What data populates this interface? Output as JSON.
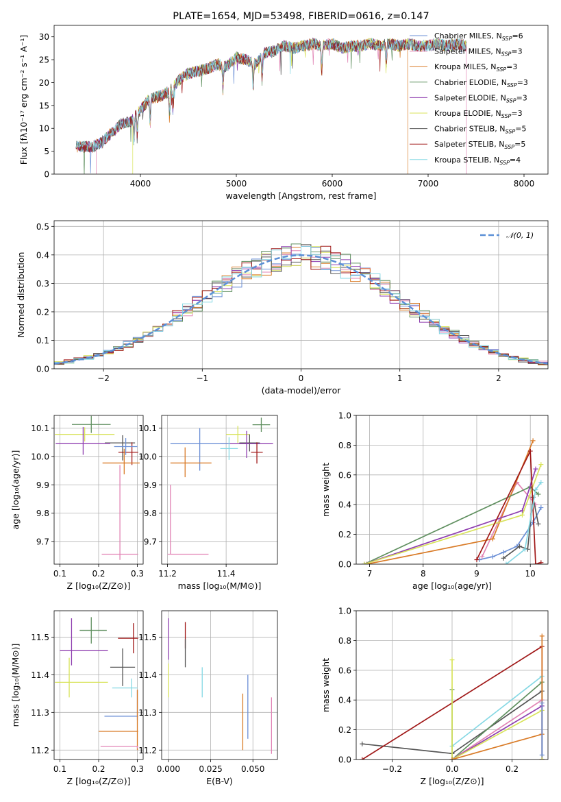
{
  "figure": {
    "title": "PLATE=1654, MJD=53498, FIBERID=0616, z=0.147"
  },
  "colors": {
    "Chabrier MILES": "#6b8fd6",
    "Salpeter MILES": "#e183b4",
    "Kroupa MILES": "#d97b27",
    "Chabrier ELODIE": "#5f8f5f",
    "Salpeter ELODIE": "#8f3fb0",
    "Kroupa ELODIE": "#d8e35a",
    "Chabrier STELIB": "#555555",
    "Salpeter STELIB": "#a01818",
    "Kroupa STELIB": "#86d8e4"
  },
  "chart_data": [
    {
      "id": "spectrum",
      "type": "line",
      "title": "PLATE=1654, MJD=53498, FIBERID=0616, z=0.147",
      "xlabel": "wavelength [Angstrom, rest frame]",
      "ylabel": "Flux [fλ10⁻¹⁷ erg cm⁻² s⁻¹ A⁻¹]",
      "xlim": [
        3100,
        8250
      ],
      "ylim": [
        0,
        32.5
      ],
      "xticks": [
        4000,
        5000,
        6000,
        7000,
        8000
      ],
      "yticks": [
        0,
        5,
        10,
        15,
        20,
        25,
        30
      ],
      "grid": false,
      "legend_position": "upper-right",
      "legend": [
        {
          "label": "Chabrier MILES, N",
          "sub": "SSP",
          "suffix": "=6",
          "model": "Chabrier MILES"
        },
        {
          "label": "Salpeter MILES, N",
          "sub": "SSP",
          "suffix": "=3",
          "model": "Salpeter MILES"
        },
        {
          "label": "Kroupa MILES, N",
          "sub": "SSP",
          "suffix": "=3",
          "model": "Kroupa MILES"
        },
        {
          "label": "Chabrier ELODIE, N",
          "sub": "SSP",
          "suffix": "=3",
          "model": "Chabrier ELODIE"
        },
        {
          "label": "Salpeter ELODIE, N",
          "sub": "SSP",
          "suffix": "=3",
          "model": "Salpeter ELODIE"
        },
        {
          "label": "Kroupa ELODIE, N",
          "sub": "SSP",
          "suffix": "=3",
          "model": "Kroupa ELODIE"
        },
        {
          "label": "Chabrier STELIB, N",
          "sub": "SSP",
          "suffix": "=5",
          "model": "Chabrier STELIB"
        },
        {
          "label": "Salpeter STELIB, N",
          "sub": "SSP",
          "suffix": "=5",
          "model": "Salpeter STELIB"
        },
        {
          "label": "Kroupa STELIB, N",
          "sub": "SSP",
          "suffix": "=4",
          "model": "Kroupa STELIB"
        }
      ],
      "continuum": {
        "x": [
          3330,
          3500,
          3600,
          3700,
          3800,
          3900,
          4000,
          4100,
          4200,
          4300,
          4400,
          4500,
          4600,
          4700,
          4800,
          4900,
          5000,
          5100,
          5200,
          5300,
          5400,
          5500,
          5600,
          5700,
          5800,
          5900,
          6000,
          6100,
          6200,
          6300,
          6400,
          6500,
          6600,
          6700,
          6800,
          6900,
          7000,
          7100,
          7200,
          7300,
          7400
        ],
        "y": [
          6.0,
          6.0,
          7.0,
          9.0,
          11.0,
          11.5,
          14.0,
          16.5,
          17.0,
          18.0,
          20.5,
          22.0,
          22.5,
          23.0,
          24.0,
          23.5,
          25.5,
          25.0,
          24.0,
          26.5,
          27.0,
          28.0,
          27.5,
          28.0,
          28.5,
          28.0,
          28.5,
          27.5,
          28.0,
          28.0,
          28.5,
          28.0,
          28.5,
          28.0,
          28.5,
          28.0,
          28.0,
          28.5,
          28.0,
          28.5,
          28.0
        ]
      },
      "drops": [
        {
          "model": "Salpeter MILES",
          "x": 3540
        },
        {
          "model": "Kroupa ELODIE",
          "x": 3920
        },
        {
          "model": "Kroupa MILES",
          "x": 6790
        },
        {
          "model": "Salpeter MILES",
          "x": 7400
        }
      ]
    },
    {
      "id": "residuals",
      "type": "histogram",
      "xlabel": "(data-model)/error",
      "ylabel": "Normed distribution",
      "xlim": [
        -2.5,
        2.5
      ],
      "ylim": [
        0,
        0.52
      ],
      "xticks": [
        -2,
        -1,
        0,
        1,
        2
      ],
      "yticks": [
        0.0,
        0.1,
        0.2,
        0.3,
        0.4,
        0.5
      ],
      "grid": true,
      "bin_width": 0.1,
      "legend_position": "upper-right",
      "gaussian_label": "𝒩(0, 1)",
      "gaussian_color": "#5b8fd6"
    },
    {
      "id": "age-vs-Z",
      "type": "errorbar",
      "xlabel": "Z [log₁₀(Z/Z⊙)]",
      "ylabel": "age  [log₁₀(age/yr)]",
      "xlim": [
        0.085,
        0.315
      ],
      "ylim": [
        9.62,
        10.145
      ],
      "xticks": [
        0.1,
        0.2,
        0.3
      ],
      "yticks": [
        9.7,
        9.8,
        9.9,
        10.0,
        10.1
      ],
      "grid": true,
      "points": [
        {
          "model": "Chabrier ELODIE",
          "x": 0.181,
          "y": 10.113,
          "xerr": [
            0.05,
            0.05
          ],
          "yerr": [
            0.03,
            0.03
          ]
        },
        {
          "model": "Kroupa ELODIE",
          "x": 0.164,
          "y": 10.078,
          "xerr": [
            0.077,
            0.077
          ],
          "yerr": [
            0.025,
            0.025
          ]
        },
        {
          "model": "Chabrier STELIB",
          "x": 0.262,
          "y": 10.048,
          "xerr": [
            0.046,
            0.032
          ],
          "yerr": [
            0.062,
            0.027
          ]
        },
        {
          "model": "Salpeter ELODIE",
          "x": 0.16,
          "y": 10.046,
          "xerr": [
            0.071,
            0.07
          ],
          "yerr": [
            0.04,
            0.058
          ]
        },
        {
          "model": "Salpeter STELIB",
          "x": 0.286,
          "y": 10.015,
          "xerr": [
            0.035,
            0.016
          ],
          "yerr": [
            0.045,
            0.035
          ]
        },
        {
          "model": "Kroupa MILES",
          "x": 0.266,
          "y": 9.977,
          "xerr": [
            0.056,
            0.04
          ],
          "yerr": [
            0.04,
            0.05
          ]
        },
        {
          "model": "Chabrier MILES",
          "x": 0.27,
          "y": 10.035,
          "xerr": [
            0.03,
            0.03
          ],
          "yerr": [
            0.03,
            0.03
          ]
        },
        {
          "model": "Salpeter MILES",
          "x": 0.255,
          "y": 9.655,
          "xerr": [
            0.047,
            0.047
          ],
          "yerr": [
            0.02,
            0.315
          ]
        }
      ]
    },
    {
      "id": "age-vs-mass",
      "type": "errorbar",
      "xlabel": "mass [log₁₀(M/M⊙)]",
      "ylabel": "",
      "xlim": [
        11.18,
        11.575
      ],
      "ylim": [
        9.62,
        10.145
      ],
      "xticks": [
        11.2,
        11.4
      ],
      "yticks": [
        9.7,
        9.8,
        9.9,
        10.0,
        10.1
      ],
      "grid": true,
      "points": [
        {
          "model": "Chabrier ELODIE",
          "x": 11.52,
          "y": 10.112,
          "xerr": [
            0.03,
            0.03
          ],
          "yerr": [
            0.025,
            0.025
          ]
        },
        {
          "model": "Kroupa ELODIE",
          "x": 11.44,
          "y": 10.078,
          "xerr": [
            0.04,
            0.04
          ],
          "yerr": [
            0.03,
            0.03
          ]
        },
        {
          "model": "Chabrier STELIB",
          "x": 11.48,
          "y": 10.048,
          "xerr": [
            0.035,
            0.035
          ],
          "yerr": [
            0.03,
            0.03
          ]
        },
        {
          "model": "Salpeter ELODIE",
          "x": 11.47,
          "y": 10.045,
          "xerr": [
            0.09,
            0.09
          ],
          "yerr": [
            0.05,
            0.045
          ]
        },
        {
          "model": "Chabrier MILES",
          "x": 11.31,
          "y": 10.045,
          "xerr": [
            0.1,
            0.1
          ],
          "yerr": [
            0.095,
            0.055
          ]
        },
        {
          "model": "Kroupa STELIB",
          "x": 11.41,
          "y": 10.028,
          "xerr": [
            0.03,
            0.03
          ],
          "yerr": [
            0.04,
            0.04
          ]
        },
        {
          "model": "Salpeter STELIB",
          "x": 11.505,
          "y": 10.015,
          "xerr": [
            0.02,
            0.02
          ],
          "yerr": [
            0.04,
            0.035
          ]
        },
        {
          "model": "Kroupa MILES",
          "x": 11.26,
          "y": 9.977,
          "xerr": [
            0.05,
            0.09
          ],
          "yerr": [
            0.05,
            0.055
          ]
        },
        {
          "model": "Salpeter MILES",
          "x": 11.21,
          "y": 9.655,
          "xerr": [
            0.01,
            0.13
          ],
          "yerr": [
            0.0,
            0.245
          ]
        }
      ]
    },
    {
      "id": "weight-vs-age",
      "type": "line",
      "xlabel": "age  [log₁₀(age/yr)]",
      "ylabel": "mass weight",
      "xlim": [
        6.75,
        10.33
      ],
      "ylim": [
        0,
        1.0
      ],
      "xticks": [
        7,
        8,
        9,
        10
      ],
      "yticks": [
        0.0,
        0.2,
        0.4,
        0.6,
        0.8,
        1.0
      ],
      "grid": true,
      "series": [
        {
          "model": "Chabrier MILES",
          "x": [
            9.05,
            9.3,
            9.5,
            9.75,
            10.05,
            10.2
          ],
          "y": [
            0.03,
            0.05,
            0.08,
            0.12,
            0.28,
            0.38
          ]
        },
        {
          "model": "Salpeter MILES",
          "x": [
            9.1,
            9.75,
            10.1
          ],
          "y": [
            0.05,
            0.55,
            0.4
          ]
        },
        {
          "model": "Kroupa MILES",
          "x": [
            6.95,
            9.3,
            10.05
          ],
          "y": [
            0.0,
            0.17,
            0.83
          ]
        },
        {
          "model": "Chabrier ELODIE",
          "x": [
            6.9,
            10.0,
            10.15
          ],
          "y": [
            0.0,
            0.52,
            0.47
          ]
        },
        {
          "model": "Salpeter ELODIE",
          "x": [
            6.9,
            9.85,
            10.1
          ],
          "y": [
            0.0,
            0.36,
            0.64
          ]
        },
        {
          "model": "Kroupa ELODIE",
          "x": [
            6.9,
            9.85,
            10.2
          ],
          "y": [
            0.0,
            0.33,
            0.67
          ]
        },
        {
          "model": "Chabrier STELIB",
          "x": [
            9.5,
            9.8,
            9.95,
            10.05,
            10.15
          ],
          "y": [
            0.04,
            0.12,
            0.1,
            0.45,
            0.27
          ]
        },
        {
          "model": "Salpeter STELIB",
          "x": [
            9.0,
            10.0,
            10.1,
            10.2
          ],
          "y": [
            0.03,
            0.76,
            0.0,
            0.01
          ]
        },
        {
          "model": "Kroupa STELIB",
          "x": [
            9.55,
            9.9,
            10.1,
            10.2
          ],
          "y": [
            0.0,
            0.1,
            0.5,
            0.55
          ]
        }
      ]
    },
    {
      "id": "mass-vs-Z",
      "type": "errorbar",
      "xlabel": "Z [log₁₀(Z/Z⊙)]",
      "ylabel": "mass [log₁₀(M/M⊙)]",
      "xlim": [
        0.085,
        0.315
      ],
      "ylim": [
        11.175,
        11.57
      ],
      "xticks": [
        0.1,
        0.2,
        0.3
      ],
      "yticks": [
        11.2,
        11.3,
        11.4,
        11.5
      ],
      "grid": true,
      "points": [
        {
          "model": "Chabrier ELODIE",
          "x": 0.181,
          "y": 11.518,
          "xerr": [
            0.03,
            0.04
          ],
          "yerr": [
            0.035,
            0.035
          ]
        },
        {
          "model": "Salpeter STELIB",
          "x": 0.29,
          "y": 11.497,
          "xerr": [
            0.04,
            0.012
          ],
          "yerr": [
            0.04,
            0.04
          ]
        },
        {
          "model": "Salpeter ELODIE",
          "x": 0.13,
          "y": 11.465,
          "xerr": [
            0.03,
            0.094
          ],
          "yerr": [
            0.04,
            0.085
          ]
        },
        {
          "model": "Chabrier STELIB",
          "x": 0.262,
          "y": 11.42,
          "xerr": [
            0.032,
            0.032
          ],
          "yerr": [
            0.05,
            0.05
          ]
        },
        {
          "model": "Kroupa ELODIE",
          "x": 0.124,
          "y": 11.38,
          "xerr": [
            0.037,
            0.1
          ],
          "yerr": [
            0.04,
            0.065
          ]
        },
        {
          "model": "Kroupa STELIB",
          "x": 0.285,
          "y": 11.365,
          "xerr": [
            0.05,
            0.015
          ],
          "yerr": [
            0.025,
            0.025
          ]
        },
        {
          "model": "Chabrier MILES",
          "x": 0.3,
          "y": 11.29,
          "xerr": [
            0.085,
            0.002
          ],
          "yerr": [
            0.01,
            0.07
          ]
        },
        {
          "model": "Kroupa MILES",
          "x": 0.3,
          "y": 11.25,
          "xerr": [
            0.1,
            0.002
          ],
          "yerr": [
            0.05,
            0.11
          ]
        },
        {
          "model": "Salpeter MILES",
          "x": 0.3,
          "y": 11.21,
          "xerr": [
            0.095,
            0.002
          ],
          "yerr": [
            0.005,
            0.0
          ]
        }
      ]
    },
    {
      "id": "mass-vs-ebv",
      "type": "errorbar",
      "xlabel": "E(B-V)",
      "ylabel": "",
      "xlim": [
        -0.004,
        0.0645
      ],
      "ylim": [
        11.175,
        11.57
      ],
      "xticks": [
        0.0,
        0.025,
        0.05
      ],
      "yticks": [
        11.2,
        11.3,
        11.4,
        11.5
      ],
      "grid": true,
      "points": [
        {
          "model": "Salpeter ELODIE",
          "x": 0.0,
          "y": 11.48,
          "xerr": [
            0,
            0
          ],
          "yerr": [
            0.04,
            0.07
          ]
        },
        {
          "model": "Salpeter STELIB",
          "x": 0.01,
          "y": 11.5,
          "xerr": [
            0,
            0
          ],
          "yerr": [
            0.03,
            0.04
          ]
        },
        {
          "model": "Chabrier STELIB",
          "x": 0.01,
          "y": 11.45,
          "xerr": [
            0,
            0
          ],
          "yerr": [
            0.03,
            0.045
          ]
        },
        {
          "model": "Kroupa ELODIE",
          "x": 0.0,
          "y": 11.38,
          "xerr": [
            0,
            0
          ],
          "yerr": [
            0.04,
            0.05
          ]
        },
        {
          "model": "Kroupa STELIB",
          "x": 0.02,
          "y": 11.38,
          "xerr": [
            0,
            0
          ],
          "yerr": [
            0.04,
            0.04
          ]
        },
        {
          "model": "Chabrier MILES",
          "x": 0.047,
          "y": 11.31,
          "xerr": [
            0,
            0
          ],
          "yerr": [
            0.08,
            0.09
          ]
        },
        {
          "model": "Kroupa MILES",
          "x": 0.044,
          "y": 11.25,
          "xerr": [
            0,
            0
          ],
          "yerr": [
            0.05,
            0.1
          ]
        },
        {
          "model": "Salpeter MILES",
          "x": 0.061,
          "y": 11.26,
          "xerr": [
            0,
            0
          ],
          "yerr": [
            0.07,
            0.08
          ]
        }
      ]
    },
    {
      "id": "weight-vs-Z",
      "type": "line",
      "xlabel": "Z [log₁₀(Z/Z⊙)]",
      "ylabel": "mass weight",
      "xlim": [
        -0.32,
        0.32
      ],
      "ylim": [
        0,
        1.0
      ],
      "xticks": [
        -0.2,
        0.0,
        0.2
      ],
      "yticks": [
        0.0,
        0.2,
        0.4,
        0.6,
        0.8,
        1.0
      ],
      "grid": true,
      "series": [
        {
          "model": "Chabrier STELIB",
          "x": [
            -0.3,
            0.0,
            0.3
          ],
          "y": [
            0.105,
            0.04,
            0.46
          ]
        },
        {
          "model": "Salpeter STELIB",
          "x": [
            -0.3,
            0.3,
            0.3
          ],
          "y": [
            0.0,
            0.76,
            0.0
          ]
        },
        {
          "model": "Kroupa STELIB",
          "x": [
            0.0,
            0.3,
            0.3
          ],
          "y": [
            0.09,
            0.56,
            0.0
          ]
        },
        {
          "model": "Chabrier ELODIE",
          "x": [
            0.0,
            0.0,
            0.3,
            0.3
          ],
          "y": [
            0.47,
            0.0,
            0.52,
            0.0
          ]
        },
        {
          "model": "Salpeter MILES",
          "x": [
            0.0,
            0.3,
            0.3
          ],
          "y": [
            0.0,
            0.4,
            0.0
          ]
        },
        {
          "model": "Salpeter ELODIE",
          "x": [
            0.0,
            0.3,
            0.3
          ],
          "y": [
            0.0,
            0.36,
            0.0
          ]
        },
        {
          "model": "Kroupa ELODIE",
          "x": [
            0.0,
            0.0,
            0.3,
            0.3
          ],
          "y": [
            0.67,
            0.0,
            0.33,
            0.0
          ]
        },
        {
          "model": "Kroupa MILES",
          "x": [
            0.0,
            0.3,
            0.3
          ],
          "y": [
            0.0,
            0.17,
            0.83
          ]
        },
        {
          "model": "Chabrier MILES",
          "x": [
            0.3,
            0.3
          ],
          "y": [
            0.03,
            0.38
          ]
        }
      ]
    }
  ]
}
